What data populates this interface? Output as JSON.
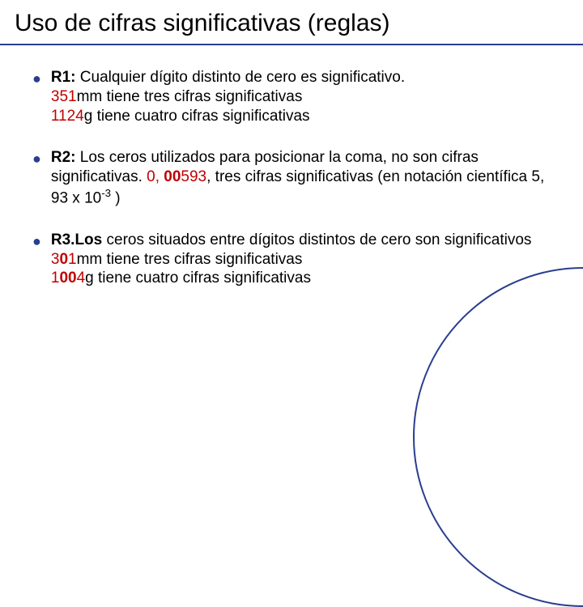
{
  "title": "Uso de cifras significativas (reglas)",
  "colors": {
    "rule": "#2a3d8f",
    "bullet": "#2a3d8f",
    "accent": "#c00000",
    "text": "#000000",
    "background": "#ffffff"
  },
  "typography": {
    "title_fontsize": 30,
    "body_fontsize": 19,
    "font_family": "Arial"
  },
  "bullets": [
    {
      "rule_label": "R1:",
      "lead": " Cualquier dígito distinto de cero es significativo.",
      "lines": [
        {
          "hl": "351",
          "rest": "mm tiene tres cifras significativas"
        },
        {
          "hl": "1124",
          "rest": "g tiene cuatro cifras significativas"
        }
      ]
    },
    {
      "rule_label": "R2:",
      "lead": " Los ceros utilizados para posicionar la coma, no son cifras significativas.   ",
      "inline_hl_prefix": "0, ",
      "inline_hl_bold": "00",
      "inline_hl_suffix": "593",
      "inline_tail": ", tres cifras significativas (en notación científica ",
      "sci": "5, 93 x 10",
      "sci_sup": "-3",
      "sci_close": " )"
    },
    {
      "rule_label": "R3.",
      "lead_bold_extra": "Los",
      "lead": " ceros situados entre dígitos distintos de cero son significativos",
      "lines": [
        {
          "hl_pre": "3",
          "hl_bold": "0",
          "hl_post": "1",
          "rest": "mm tiene tres cifras significativas"
        },
        {
          "hl_pre": "1",
          "hl_bold": "00",
          "hl_post": "4",
          "rest": "g tiene cuatro cifras significativas"
        }
      ]
    }
  ]
}
